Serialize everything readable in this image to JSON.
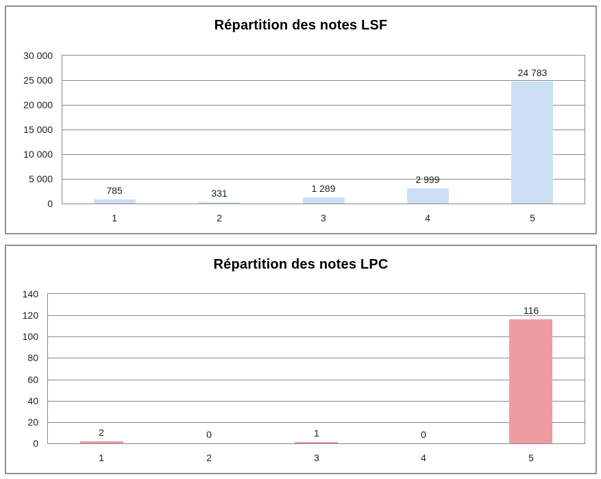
{
  "page": {
    "background_color": "#ffffff",
    "panel_border_color": "#8f8f8f"
  },
  "styles": {
    "gridline_color": "#878787",
    "plot_border_color": "#878787",
    "text_color": "#1d1d1d",
    "title_color": "#000000"
  },
  "chart_data": [
    {
      "type": "bar",
      "title": "Répartition des notes LSF",
      "categories": [
        "1",
        "2",
        "3",
        "4",
        "5"
      ],
      "values": [
        785,
        331,
        1289,
        2999,
        24783
      ],
      "value_labels": [
        "785",
        "331",
        "1 289",
        "2 999",
        "24 783"
      ],
      "xlabel": "",
      "ylabel": "",
      "ylim": [
        0,
        30000
      ],
      "ytick_step": 5000,
      "ytick_labels": [
        "30 000",
        "25 000",
        "20 000",
        "15 000",
        "10 000",
        "5 000",
        "0"
      ],
      "grid": true,
      "legend": "none",
      "bar_color": "#cbe0f4"
    },
    {
      "type": "bar",
      "title": "Répartition des notes LPC",
      "categories": [
        "1",
        "2",
        "3",
        "4",
        "5"
      ],
      "values": [
        2,
        0,
        1,
        0,
        116
      ],
      "value_labels": [
        "2",
        "0",
        "1",
        "0",
        "116"
      ],
      "xlabel": "",
      "ylabel": "",
      "ylim": [
        0,
        140
      ],
      "ytick_step": 20,
      "ytick_labels": [
        "140",
        "120",
        "100",
        "80",
        "60",
        "40",
        "20",
        "0"
      ],
      "grid": true,
      "legend": "none",
      "bar_color": "#ee9ba0"
    }
  ]
}
